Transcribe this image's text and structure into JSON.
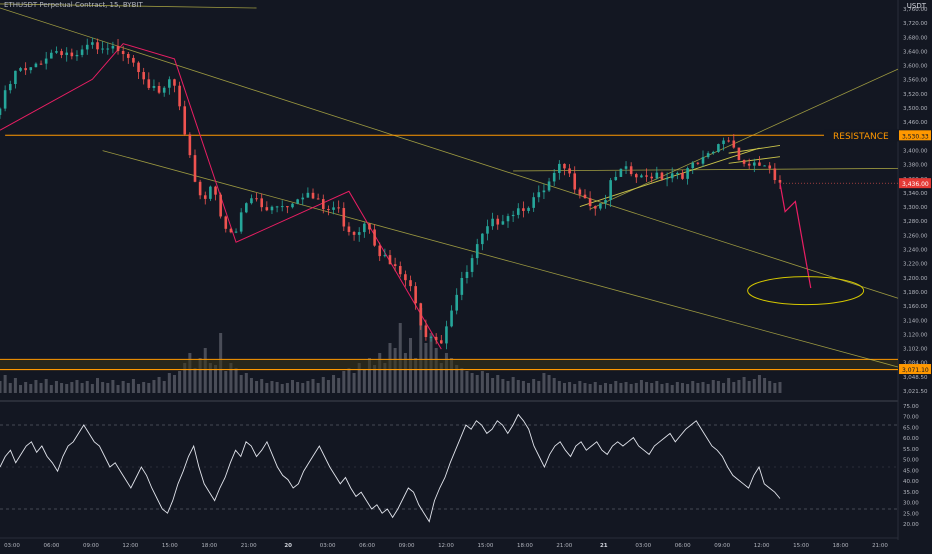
{
  "header": {
    "symbol_title": "ETHUSDT Perpetual Contract, 15, BYBIT",
    "currency": "USDT"
  },
  "colors": {
    "background": "#131722",
    "up": "#26a69a",
    "down": "#ef5350",
    "pattern": "#e91e63",
    "level": "#ff9800",
    "trend": "#c9c34a",
    "rsi": "#e0e3eb",
    "current_price_bg": "#e53935"
  },
  "annotations": {
    "resistance_label": "RESISTANCE"
  },
  "chart_data": [
    {
      "type": "candlestick",
      "price_axis_ticks": [
        "3,760.00",
        "3,720.00",
        "3,680.00",
        "3,640.00",
        "3,600.00",
        "3,560.00",
        "3,520.00",
        "3,500.00",
        "3,460.00",
        "3,420.00",
        "3,400.00",
        "3,380.00",
        "3,360.00",
        "3,340.00",
        "3,300.00",
        "3,280.00",
        "3,260.00",
        "3,240.00",
        "3,220.00",
        "3,200.00",
        "3,180.00",
        "3,160.00",
        "3,140.00",
        "3,120.00",
        "3,102.00",
        "3,084.00",
        "3,048.50",
        "3,021.50"
      ],
      "time_axis_ticks": [
        "03:00",
        "06:00",
        "09:00",
        "12:00",
        "15:00",
        "18:00",
        "21:00",
        "20",
        "03:00",
        "06:00",
        "09:00",
        "12:00",
        "15:00",
        "18:00",
        "21:00",
        "21",
        "03:00",
        "06:00",
        "09:00",
        "12:00",
        "15:00",
        "18:00",
        "21:00"
      ],
      "price_labels": {
        "resistance_level": "3,530.33",
        "current_price": "3,436.00",
        "support_level": "3,071.10"
      },
      "ylim": [
        3020,
        3780
      ],
      "price_path": [
        [
          0,
          3570
        ],
        [
          2,
          3620
        ],
        [
          4,
          3660
        ],
        [
          6,
          3650
        ],
        [
          8,
          3675
        ],
        [
          10,
          3690
        ],
        [
          12,
          3700
        ],
        [
          14,
          3690
        ],
        [
          16,
          3680
        ],
        [
          18,
          3710
        ],
        [
          20,
          3690
        ],
        [
          22,
          3695
        ],
        [
          24,
          3705
        ],
        [
          26,
          3685
        ],
        [
          28,
          3660
        ],
        [
          30,
          3620
        ],
        [
          32,
          3600
        ],
        [
          33,
          3640
        ],
        [
          35,
          3620
        ],
        [
          36,
          3540
        ],
        [
          38,
          3460
        ],
        [
          40,
          3400
        ],
        [
          42,
          3440
        ],
        [
          44,
          3360
        ],
        [
          46,
          3320
        ],
        [
          48,
          3390
        ],
        [
          50,
          3410
        ],
        [
          52,
          3380
        ],
        [
          54,
          3400
        ],
        [
          56,
          3390
        ],
        [
          58,
          3410
        ],
        [
          60,
          3420
        ],
        [
          62,
          3400
        ],
        [
          64,
          3380
        ],
        [
          66,
          3390
        ],
        [
          68,
          3350
        ],
        [
          70,
          3340
        ],
        [
          72,
          3370
        ],
        [
          74,
          3310
        ],
        [
          76,
          3280
        ],
        [
          78,
          3260
        ],
        [
          80,
          3240
        ],
        [
          82,
          3180
        ],
        [
          84,
          3130
        ],
        [
          85,
          3160
        ],
        [
          86,
          3110
        ],
        [
          88,
          3180
        ],
        [
          90,
          3230
        ],
        [
          92,
          3270
        ],
        [
          94,
          3320
        ],
        [
          96,
          3350
        ],
        [
          98,
          3370
        ],
        [
          100,
          3380
        ],
        [
          102,
          3390
        ],
        [
          104,
          3400
        ],
        [
          106,
          3410
        ],
        [
          108,
          3440
        ],
        [
          110,
          3470
        ],
        [
          112,
          3440
        ],
        [
          114,
          3420
        ],
        [
          116,
          3390
        ],
        [
          118,
          3400
        ],
        [
          120,
          3440
        ],
        [
          122,
          3460
        ],
        [
          124,
          3450
        ],
        [
          126,
          3440
        ],
        [
          128,
          3460
        ],
        [
          130,
          3450
        ],
        [
          132,
          3460
        ],
        [
          134,
          3455
        ],
        [
          136,
          3470
        ],
        [
          138,
          3480
        ],
        [
          140,
          3500
        ],
        [
          142,
          3530
        ],
        [
          144,
          3500
        ],
        [
          146,
          3470
        ],
        [
          148,
          3480
        ],
        [
          150,
          3460
        ],
        [
          152,
          3436
        ]
      ],
      "projection_path": [
        [
          152,
          3436
        ],
        [
          153,
          3380
        ],
        [
          155,
          3400
        ],
        [
          158,
          3230
        ]
      ],
      "volume": [
        0.12,
        0.18,
        0.1,
        0.15,
        0.08,
        0.11,
        0.09,
        0.13,
        0.1,
        0.14,
        0.08,
        0.12,
        0.1,
        0.09,
        0.11,
        0.13,
        0.1,
        0.12,
        0.09,
        0.15,
        0.11,
        0.1,
        0.13,
        0.08,
        0.12,
        0.1,
        0.14,
        0.09,
        0.11,
        0.1,
        0.13,
        0.16,
        0.12,
        0.2,
        0.18,
        0.22,
        0.3,
        0.4,
        0.25,
        0.35,
        0.45,
        0.3,
        0.28,
        0.6,
        0.22,
        0.3,
        0.25,
        0.18,
        0.2,
        0.15,
        0.12,
        0.14,
        0.1,
        0.12,
        0.11,
        0.09,
        0.1,
        0.13,
        0.11,
        0.1,
        0.12,
        0.14,
        0.1,
        0.16,
        0.13,
        0.18,
        0.15,
        0.22,
        0.25,
        0.2,
        0.3,
        0.24,
        0.35,
        0.28,
        0.4,
        0.3,
        0.5,
        0.45,
        0.7,
        0.4,
        0.55,
        0.35,
        0.85,
        0.5,
        0.6,
        0.45,
        0.3,
        0.4,
        0.35,
        0.28,
        0.25,
        0.22,
        0.2,
        0.18,
        0.22,
        0.2,
        0.15,
        0.18,
        0.14,
        0.12,
        0.16,
        0.13,
        0.12,
        0.1,
        0.14,
        0.12,
        0.2,
        0.18,
        0.15,
        0.12,
        0.1,
        0.11,
        0.09,
        0.12,
        0.1,
        0.09,
        0.11,
        0.08,
        0.1,
        0.09,
        0.12,
        0.1,
        0.11,
        0.09,
        0.1,
        0.13,
        0.11,
        0.1,
        0.12,
        0.09,
        0.1,
        0.08,
        0.11,
        0.1,
        0.09,
        0.12,
        0.1,
        0.11,
        0.09,
        0.13,
        0.12,
        0.1,
        0.15,
        0.11,
        0.13,
        0.16,
        0.12,
        0.14,
        0.18,
        0.15,
        0.12,
        0.1,
        0.11
      ]
    },
    {
      "type": "line",
      "indicator": "RSI",
      "ylim": [
        20,
        80
      ],
      "rsi_axis_ticks": [
        "75.00",
        "70.00",
        "65.00",
        "60.00",
        "55.00",
        "50.00",
        "45.00",
        "40.00",
        "35.00",
        "30.00",
        "25.00",
        "20.00"
      ],
      "upper_band": 70,
      "lower_band": 30,
      "values": [
        50,
        55,
        58,
        52,
        56,
        60,
        62,
        57,
        60,
        55,
        52,
        48,
        55,
        60,
        62,
        66,
        70,
        66,
        62,
        60,
        55,
        50,
        52,
        48,
        44,
        40,
        45,
        50,
        46,
        40,
        35,
        30,
        28,
        34,
        42,
        48,
        55,
        60,
        50,
        42,
        38,
        34,
        40,
        45,
        52,
        58,
        55,
        62,
        60,
        55,
        58,
        62,
        56,
        50,
        46,
        44,
        40,
        42,
        48,
        52,
        56,
        60,
        55,
        50,
        46,
        42,
        45,
        40,
        36,
        38,
        34,
        30,
        32,
        28,
        30,
        26,
        30,
        35,
        40,
        38,
        32,
        28,
        24,
        34,
        40,
        45,
        52,
        58,
        64,
        70,
        68,
        72,
        70,
        66,
        68,
        72,
        70,
        66,
        70,
        75,
        72,
        68,
        60,
        55,
        50,
        56,
        60,
        62,
        58,
        55,
        60,
        62,
        58,
        60,
        62,
        58,
        56,
        60,
        62,
        60,
        62,
        64,
        60,
        58,
        56,
        60,
        62,
        64,
        66,
        62,
        65,
        68,
        70,
        72,
        68,
        64,
        60,
        58,
        55,
        50,
        46,
        44,
        42,
        40,
        46,
        50,
        42,
        40,
        38,
        35
      ]
    }
  ]
}
